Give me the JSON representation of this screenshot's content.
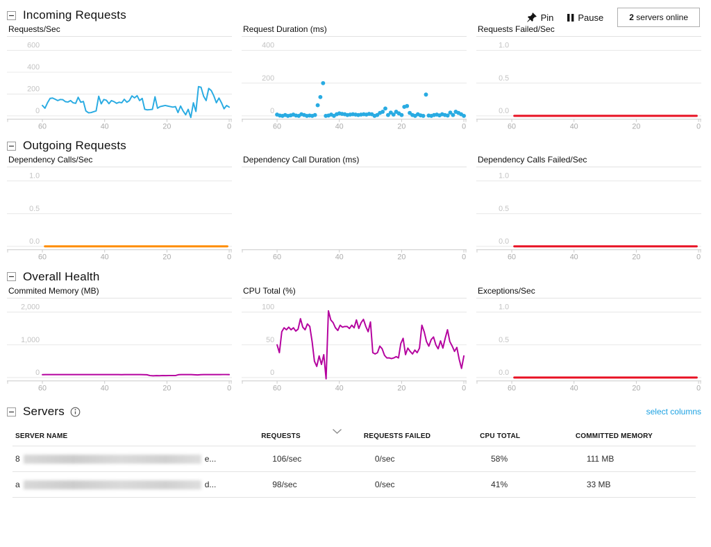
{
  "toolbar": {
    "pin_label": "Pin",
    "pause_label": "Pause",
    "servers_online_count": "2",
    "servers_online_label": "servers online"
  },
  "colors": {
    "blue": "#29abe2",
    "red": "#e81123",
    "orange": "#ff8c00",
    "magenta": "#b4009e",
    "link": "#1ba1e2",
    "gridline": "#e7e7e7",
    "axis": "#c9c9c9"
  },
  "sections": [
    {
      "id": "incoming",
      "title": "Incoming Requests"
    },
    {
      "id": "outgoing",
      "title": "Outgoing Requests"
    },
    {
      "id": "health",
      "title": "Overall Health"
    }
  ],
  "chart_data": [
    {
      "section": "incoming",
      "type": "line",
      "title": "Requests/Sec",
      "color": "blue",
      "ylim": [
        0,
        600
      ],
      "yticks": [
        0,
        200,
        400,
        600
      ],
      "ytick_labels": [
        "0",
        "200",
        "400",
        "600"
      ],
      "xticks": [
        60,
        40,
        20,
        0
      ],
      "x_range": [
        60,
        0
      ],
      "values": [
        95,
        70,
        120,
        160,
        163,
        152,
        140,
        150,
        148,
        130,
        127,
        140,
        120,
        115,
        170,
        125,
        132,
        45,
        28,
        30,
        38,
        45,
        180,
        110,
        150,
        143,
        112,
        140,
        130,
        115,
        125,
        120,
        152,
        125,
        140,
        183,
        165,
        185,
        140,
        160,
        60,
        55,
        57,
        60,
        175,
        70,
        85,
        90,
        95,
        90,
        85,
        80,
        85,
        30,
        90,
        45,
        10,
        60,
        -15,
        120,
        40,
        268,
        262,
        180,
        140,
        252,
        232,
        183,
        120,
        163,
        120,
        65,
        95,
        80
      ]
    },
    {
      "section": "incoming",
      "type": "scatter",
      "title": "Request Duration (ms)",
      "color": "blue",
      "ylim": [
        0,
        400
      ],
      "yticks": [
        0,
        200,
        400
      ],
      "ytick_labels": [
        "0",
        "200",
        "400"
      ],
      "xticks": [
        60,
        40,
        20,
        0
      ],
      "x_range": [
        60,
        0
      ],
      "values": [
        8,
        2,
        0,
        5,
        0,
        3,
        8,
        2,
        0,
        10,
        5,
        0,
        2,
        0,
        5,
        65,
        115,
        200,
        0,
        2,
        8,
        0,
        10,
        15,
        12,
        10,
        5,
        8,
        10,
        8,
        5,
        8,
        10,
        8,
        12,
        10,
        0,
        5,
        18,
        25,
        45,
        5,
        20,
        8,
        25,
        15,
        5,
        55,
        60,
        18,
        5,
        0,
        10,
        3,
        0,
        130,
        2,
        0,
        5,
        8,
        3,
        10,
        5,
        2,
        20,
        5,
        25,
        18,
        10,
        0
      ]
    },
    {
      "section": "incoming",
      "type": "flat",
      "title": "Requests Failed/Sec",
      "color": "red",
      "ylim": [
        0,
        1
      ],
      "yticks": [
        0,
        0.5,
        1
      ],
      "ytick_labels": [
        "0.0",
        "0.5",
        "1.0"
      ],
      "xticks": [
        60,
        40,
        20,
        0
      ],
      "x_range": [
        60,
        0
      ],
      "flat_value": 0
    },
    {
      "section": "outgoing",
      "type": "flat",
      "title": "Dependency Calls/Sec",
      "color": "orange",
      "ylim": [
        0,
        1
      ],
      "yticks": [
        0,
        0.5,
        1
      ],
      "ytick_labels": [
        "0.0",
        "0.5",
        "1.0"
      ],
      "xticks": [
        60,
        40,
        20,
        0
      ],
      "x_range": [
        60,
        0
      ],
      "flat_value": 0
    },
    {
      "section": "outgoing",
      "type": "empty",
      "title": "Dependency Call Duration (ms)",
      "color": "blue",
      "ylim": [
        0,
        1
      ],
      "yticks": [],
      "ytick_labels": [],
      "xticks": [
        60,
        40,
        20,
        0
      ],
      "x_range": [
        60,
        0
      ]
    },
    {
      "section": "outgoing",
      "type": "flat",
      "title": "Dependency Calls Failed/Sec",
      "color": "red",
      "ylim": [
        0,
        1
      ],
      "yticks": [
        0,
        0.5,
        1
      ],
      "ytick_labels": [
        "0.0",
        "0.5",
        "1.0"
      ],
      "xticks": [
        60,
        40,
        20,
        0
      ],
      "x_range": [
        60,
        0
      ],
      "flat_value": 0
    },
    {
      "section": "health",
      "type": "line",
      "title": "Commited Memory (MB)",
      "color": "magenta",
      "ylim": [
        0,
        2000
      ],
      "yticks": [
        0,
        1000,
        2000
      ],
      "ytick_labels": [
        "0",
        "1,000",
        "2,000"
      ],
      "xticks": [
        60,
        40,
        20,
        0
      ],
      "x_range": [
        60,
        0
      ],
      "values": [
        88,
        90,
        91,
        90,
        89,
        90,
        91,
        90,
        90,
        90,
        92,
        90,
        89,
        90,
        90,
        91,
        90,
        90,
        89,
        90,
        90,
        91,
        90,
        90,
        90,
        88,
        90,
        91,
        90,
        90,
        90,
        90,
        88,
        85,
        60,
        55,
        58,
        57,
        60,
        58,
        60,
        62,
        60,
        88,
        90,
        91,
        90,
        90,
        85,
        80,
        88,
        90,
        92,
        90,
        89,
        90,
        90,
        91,
        92,
        90
      ]
    },
    {
      "section": "health",
      "type": "line",
      "title": "CPU Total (%)",
      "color": "magenta",
      "ylim": [
        0,
        100
      ],
      "yticks": [
        0,
        50,
        100
      ],
      "ytick_labels": [
        "0",
        "50",
        "100"
      ],
      "xticks": [
        60,
        40,
        20,
        0
      ],
      "x_range": [
        60,
        0
      ],
      "values": [
        50,
        38,
        70,
        76,
        73,
        77,
        73,
        76,
        71,
        74,
        90,
        77,
        73,
        82,
        78,
        55,
        25,
        17,
        33,
        20,
        35,
        -2,
        102,
        88,
        84,
        76,
        72,
        80,
        77,
        78,
        78,
        75,
        80,
        76,
        88,
        75,
        84,
        89,
        78,
        70,
        85,
        38,
        36,
        38,
        48,
        44,
        34,
        30,
        30,
        29,
        30,
        32,
        30,
        52,
        60,
        35,
        45,
        40,
        36,
        42,
        38,
        45,
        80,
        70,
        55,
        48,
        58,
        62,
        50,
        44,
        56,
        45,
        60,
        73,
        55,
        48,
        40,
        46,
        28,
        14,
        33
      ]
    },
    {
      "section": "health",
      "type": "flat",
      "title": "Exceptions/Sec",
      "color": "red",
      "ylim": [
        0,
        1
      ],
      "yticks": [
        0,
        0.5,
        1
      ],
      "ytick_labels": [
        "0.0",
        "0.5",
        "1.0"
      ],
      "xticks": [
        60,
        40,
        20,
        0
      ],
      "x_range": [
        60,
        0
      ],
      "flat_value": 0
    }
  ],
  "servers": {
    "title": "Servers",
    "select_columns_label": "select columns",
    "columns": [
      "SERVER NAME",
      "REQUESTS",
      "REQUESTS FAILED",
      "CPU TOTAL",
      "COMMITTED MEMORY"
    ],
    "rows": [
      {
        "name_prefix": "8",
        "name_redacted": true,
        "name_suffix": "e...",
        "requests": "106/sec",
        "requests_failed": "0/sec",
        "cpu_total": "58%",
        "committed_memory": "111 MB"
      },
      {
        "name_prefix": "a",
        "name_redacted": true,
        "name_suffix": "d...",
        "requests": "98/sec",
        "requests_failed": "0/sec",
        "cpu_total": "41%",
        "committed_memory": "33 MB"
      }
    ]
  }
}
